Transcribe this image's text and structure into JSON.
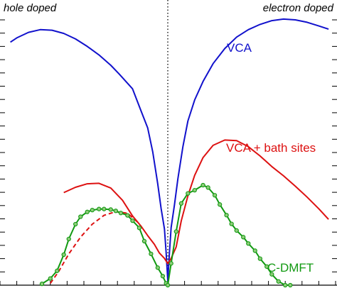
{
  "chart_data": {
    "type": "line",
    "title": "",
    "xlabel": "",
    "ylabel": "",
    "xlim": [
      -1,
      1
    ],
    "ylim": [
      0,
      1
    ],
    "grid": false,
    "annotations": {
      "left": "hole doped",
      "right": "electron doped"
    },
    "reference_line": {
      "x": 0,
      "style": "dotted",
      "color": "#000000"
    },
    "series": [
      {
        "name": "VCA",
        "color": "#1111cc",
        "style": "solid",
        "marker": "none",
        "x": [
          -0.938,
          -0.9,
          -0.83,
          -0.76,
          -0.69,
          -0.62,
          -0.55,
          -0.48,
          -0.41,
          -0.34,
          -0.29,
          -0.21,
          -0.16,
          -0.12,
          -0.09,
          -0.06,
          -0.04,
          -0.02,
          -0.01,
          0.0,
          0.01,
          0.02,
          0.04,
          0.06,
          0.09,
          0.12,
          0.16,
          0.21,
          0.27,
          0.34,
          0.41,
          0.48,
          0.55,
          0.62,
          0.69,
          0.76,
          0.83,
          0.9,
          0.958
        ],
        "y": [
          0.916,
          0.932,
          0.953,
          0.963,
          0.961,
          0.949,
          0.928,
          0.9,
          0.868,
          0.829,
          0.796,
          0.74,
          0.658,
          0.593,
          0.503,
          0.383,
          0.289,
          0.212,
          0.126,
          0.017,
          0.126,
          0.217,
          0.303,
          0.401,
          0.521,
          0.619,
          0.698,
          0.768,
          0.835,
          0.892,
          0.935,
          0.963,
          0.983,
          0.997,
          1.003,
          1.0,
          0.991,
          0.977,
          0.965
        ]
      },
      {
        "name": "VCA + bath sites",
        "color": "#dd1111",
        "style": "solid",
        "marker": "none",
        "x": [
          -0.62,
          -0.55,
          -0.48,
          -0.41,
          -0.34,
          -0.27,
          -0.21,
          -0.16,
          -0.12,
          -0.08,
          -0.05,
          -0.02,
          0.0,
          0.02,
          0.05,
          0.08,
          0.12,
          0.16,
          0.21,
          0.27,
          0.34,
          0.41,
          0.48,
          0.55,
          0.62,
          0.69,
          0.76,
          0.83,
          0.9,
          0.958
        ],
        "y": [
          0.349,
          0.369,
          0.382,
          0.384,
          0.366,
          0.32,
          0.261,
          0.223,
          0.187,
          0.154,
          0.121,
          0.101,
          0.081,
          0.101,
          0.144,
          0.242,
          0.337,
          0.414,
          0.481,
          0.527,
          0.547,
          0.545,
          0.522,
          0.487,
          0.447,
          0.412,
          0.373,
          0.332,
          0.288,
          0.248
        ]
      },
      {
        "name": "",
        "color": "#dd1111",
        "style": "dashed",
        "marker": "none",
        "x": [
          -0.7,
          -0.65,
          -0.59,
          -0.52,
          -0.45,
          -0.38,
          -0.31,
          -0.24,
          -0.17
        ],
        "y": [
          0.007,
          0.052,
          0.118,
          0.181,
          0.23,
          0.263,
          0.277,
          0.271,
          0.232
        ]
      },
      {
        "name": "C-DMFT",
        "color": "#119911",
        "style": "solid",
        "marker": "circle",
        "x": [
          -0.75,
          -0.7,
          -0.66,
          -0.62,
          -0.59,
          -0.55,
          -0.52,
          -0.48,
          -0.45,
          -0.41,
          -0.38,
          -0.34,
          -0.31,
          -0.28,
          -0.24,
          -0.21,
          -0.17,
          -0.14,
          -0.1,
          -0.06,
          -0.03,
          -0.01,
          0.0,
          0.02,
          0.05,
          0.08,
          0.12,
          0.16,
          0.21,
          0.24,
          0.28,
          0.31,
          0.35,
          0.38,
          0.41,
          0.45,
          0.48,
          0.52,
          0.55,
          0.59,
          0.62,
          0.66,
          0.7,
          0.73
        ],
        "y": [
          0.005,
          0.025,
          0.054,
          0.115,
          0.174,
          0.23,
          0.258,
          0.276,
          0.283,
          0.287,
          0.287,
          0.285,
          0.28,
          0.272,
          0.263,
          0.243,
          0.216,
          0.166,
          0.118,
          0.066,
          0.034,
          0.007,
          0.0,
          0.082,
          0.202,
          0.308,
          0.346,
          0.358,
          0.377,
          0.368,
          0.339,
          0.304,
          0.264,
          0.231,
          0.206,
          0.181,
          0.157,
          0.13,
          0.1,
          0.07,
          0.041,
          0.014,
          0.0,
          0.0
        ]
      }
    ],
    "y_ticks": [
      0,
      0.05,
      0.1,
      0.15,
      0.2,
      0.25,
      0.3,
      0.35,
      0.4,
      0.45,
      0.5,
      0.55,
      0.6,
      0.65,
      0.7,
      0.75,
      0.8,
      0.85,
      0.9,
      0.95,
      1.0
    ],
    "x_ticks": [
      -1.0,
      -0.9,
      -0.8,
      -0.7,
      -0.6,
      -0.5,
      -0.4,
      -0.3,
      -0.2,
      -0.1,
      0.0,
      0.1,
      0.2,
      0.3,
      0.4,
      0.5,
      0.6,
      0.7,
      0.8,
      0.9,
      1.0
    ]
  }
}
